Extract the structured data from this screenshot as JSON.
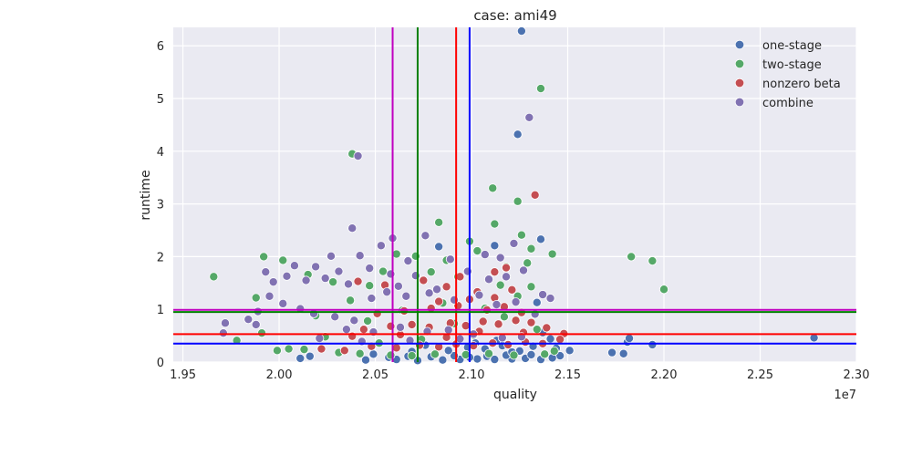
{
  "chart_data": {
    "type": "scatter",
    "title": "case: ami49",
    "xlabel": "quality",
    "ylabel": "runtime",
    "x_offset_label": "1e7",
    "xlim": [
      1.945,
      2.3
    ],
    "ylim": [
      0,
      6.35
    ],
    "x_ticks": [
      1.95,
      2.0,
      2.05,
      2.1,
      2.15,
      2.2,
      2.25,
      2.3
    ],
    "x_tick_labels": [
      "1.95",
      "2.00",
      "2.05",
      "2.10",
      "2.15",
      "2.20",
      "2.25",
      "2.30"
    ],
    "y_ticks": [
      0,
      1,
      2,
      3,
      4,
      5,
      6
    ],
    "y_tick_labels": [
      "0",
      "1",
      "2",
      "3",
      "4",
      "5",
      "6"
    ],
    "grid": true,
    "legend_position": "top-right",
    "series": [
      {
        "name": "one-stage",
        "color": "#4c72b0",
        "points": [
          [
            2.126,
            6.28
          ],
          [
            2.124,
            4.32
          ],
          [
            2.136,
            2.33
          ],
          [
            2.112,
            2.21
          ],
          [
            2.083,
            2.19
          ],
          [
            2.134,
            1.13
          ],
          [
            2.137,
            0.56
          ],
          [
            2.141,
            0.44
          ],
          [
            2.151,
            0.22
          ],
          [
            2.146,
            0.12
          ],
          [
            2.173,
            0.18
          ],
          [
            2.179,
            0.16
          ],
          [
            2.181,
            0.38
          ],
          [
            2.182,
            0.45
          ],
          [
            2.194,
            0.33
          ],
          [
            2.278,
            0.46
          ],
          [
            2.011,
            0.07
          ],
          [
            2.016,
            0.11
          ],
          [
            2.045,
            0.04
          ],
          [
            2.061,
            0.05
          ],
          [
            2.072,
            0.03
          ],
          [
            2.085,
            0.04
          ],
          [
            2.094,
            0.05
          ],
          [
            2.103,
            0.06
          ],
          [
            2.112,
            0.05
          ],
          [
            2.121,
            0.06
          ],
          [
            2.128,
            0.07
          ],
          [
            2.136,
            0.05
          ],
          [
            2.142,
            0.08
          ],
          [
            2.057,
            0.09
          ],
          [
            2.067,
            0.11
          ],
          [
            2.079,
            0.1
          ],
          [
            2.091,
            0.12
          ],
          [
            2.099,
            0.09
          ],
          [
            2.108,
            0.11
          ],
          [
            2.118,
            0.13
          ],
          [
            2.131,
            0.14
          ],
          [
            2.049,
            0.15
          ],
          [
            2.088,
            0.22
          ],
          [
            2.107,
            0.25
          ],
          [
            2.125,
            0.21
          ],
          [
            2.069,
            0.2
          ],
          [
            2.098,
            0.28
          ],
          [
            2.116,
            0.31
          ],
          [
            2.132,
            0.3
          ],
          [
            2.144,
            0.26
          ],
          [
            2.076,
            0.32
          ],
          [
            2.102,
            0.36
          ],
          [
            2.113,
            0.41
          ],
          [
            2.121,
            0.19
          ]
        ]
      },
      {
        "name": "two-stage",
        "color": "#55a868",
        "points": [
          [
            1.966,
            1.62
          ],
          [
            1.992,
            2.0
          ],
          [
            2.002,
            1.93
          ],
          [
            2.038,
            3.95
          ],
          [
            2.111,
            3.3
          ],
          [
            2.112,
            2.62
          ],
          [
            2.124,
            3.05
          ],
          [
            2.136,
            5.19
          ],
          [
            2.083,
            2.65
          ],
          [
            2.126,
            2.41
          ],
          [
            2.131,
            2.15
          ],
          [
            2.142,
            2.05
          ],
          [
            2.183,
            2.0
          ],
          [
            2.194,
            1.92
          ],
          [
            2.2,
            1.38
          ],
          [
            2.099,
            2.29
          ],
          [
            2.061,
            2.05
          ],
          [
            2.071,
            2.01
          ],
          [
            2.129,
            1.88
          ],
          [
            2.054,
            1.72
          ],
          [
            2.087,
            1.93
          ],
          [
            2.103,
            2.11
          ],
          [
            2.118,
            1.81
          ],
          [
            2.015,
            1.66
          ],
          [
            2.028,
            1.52
          ],
          [
            2.047,
            1.45
          ],
          [
            2.079,
            1.71
          ],
          [
            2.093,
            1.62
          ],
          [
            2.115,
            1.46
          ],
          [
            1.988,
            1.22
          ],
          [
            1.999,
            0.22
          ],
          [
            2.005,
            0.25
          ],
          [
            2.013,
            0.24
          ],
          [
            2.031,
            0.18
          ],
          [
            2.042,
            0.16
          ],
          [
            2.058,
            0.13
          ],
          [
            2.069,
            0.12
          ],
          [
            2.081,
            0.15
          ],
          [
            2.097,
            0.14
          ],
          [
            2.109,
            0.16
          ],
          [
            2.122,
            0.13
          ],
          [
            2.138,
            0.15
          ],
          [
            2.143,
            0.21
          ],
          [
            1.978,
            0.41
          ],
          [
            1.991,
            0.55
          ],
          [
            2.024,
            0.48
          ],
          [
            2.052,
            0.36
          ],
          [
            2.074,
            0.43
          ],
          [
            2.101,
            0.51
          ],
          [
            2.134,
            0.62
          ],
          [
            2.064,
            0.98
          ],
          [
            2.085,
            1.12
          ],
          [
            2.107,
            1.02
          ],
          [
            2.124,
            1.25
          ],
          [
            2.037,
            1.17
          ],
          [
            2.019,
            0.88
          ],
          [
            2.046,
            0.78
          ],
          [
            2.091,
            0.73
          ],
          [
            2.117,
            0.86
          ],
          [
            2.131,
            1.43
          ]
        ]
      },
      {
        "name": "nonzero beta",
        "color": "#c44e52",
        "points": [
          [
            2.133,
            3.17
          ],
          [
            2.112,
            1.71
          ],
          [
            2.118,
            1.79
          ],
          [
            2.094,
            1.62
          ],
          [
            2.075,
            1.55
          ],
          [
            2.041,
            1.53
          ],
          [
            2.055,
            1.46
          ],
          [
            2.087,
            1.43
          ],
          [
            2.103,
            1.33
          ],
          [
            2.121,
            1.37
          ],
          [
            2.022,
            0.25
          ],
          [
            2.034,
            0.22
          ],
          [
            2.048,
            0.3
          ],
          [
            2.061,
            0.27
          ],
          [
            2.073,
            0.32
          ],
          [
            2.083,
            0.29
          ],
          [
            2.092,
            0.34
          ],
          [
            2.101,
            0.31
          ],
          [
            2.111,
            0.36
          ],
          [
            2.119,
            0.33
          ],
          [
            2.128,
            0.38
          ],
          [
            2.137,
            0.35
          ],
          [
            2.148,
            0.54
          ],
          [
            2.146,
            0.43
          ],
          [
            2.044,
            0.62
          ],
          [
            2.058,
            0.68
          ],
          [
            2.069,
            0.71
          ],
          [
            2.078,
            0.66
          ],
          [
            2.089,
            0.74
          ],
          [
            2.097,
            0.69
          ],
          [
            2.106,
            0.77
          ],
          [
            2.114,
            0.72
          ],
          [
            2.123,
            0.79
          ],
          [
            2.131,
            0.75
          ],
          [
            2.139,
            0.65
          ],
          [
            2.051,
            0.92
          ],
          [
            2.065,
            0.97
          ],
          [
            2.079,
            1.02
          ],
          [
            2.093,
            1.07
          ],
          [
            2.108,
            0.99
          ],
          [
            2.117,
            1.05
          ],
          [
            2.126,
            0.94
          ],
          [
            2.083,
            1.15
          ],
          [
            2.099,
            1.19
          ],
          [
            2.112,
            1.22
          ],
          [
            2.038,
            0.49
          ],
          [
            2.063,
            0.52
          ],
          [
            2.087,
            0.47
          ],
          [
            2.104,
            0.58
          ],
          [
            2.127,
            0.56
          ]
        ]
      },
      {
        "name": "combine",
        "color": "#8172b2",
        "points": [
          [
            2.13,
            4.64
          ],
          [
            2.041,
            3.91
          ],
          [
            2.038,
            2.54
          ],
          [
            2.059,
            2.35
          ],
          [
            2.076,
            2.4
          ],
          [
            2.122,
            2.25
          ],
          [
            2.053,
            2.21
          ],
          [
            2.027,
            2.01
          ],
          [
            2.042,
            2.02
          ],
          [
            2.107,
            2.04
          ],
          [
            2.067,
            1.92
          ],
          [
            2.089,
            1.95
          ],
          [
            2.115,
            1.98
          ],
          [
            2.008,
            1.83
          ],
          [
            2.019,
            1.81
          ],
          [
            2.031,
            1.72
          ],
          [
            2.047,
            1.78
          ],
          [
            2.058,
            1.67
          ],
          [
            2.071,
            1.64
          ],
          [
            2.098,
            1.72
          ],
          [
            2.127,
            1.74
          ],
          [
            1.993,
            1.71
          ],
          [
            1.997,
            1.52
          ],
          [
            2.004,
            1.63
          ],
          [
            2.014,
            1.55
          ],
          [
            2.024,
            1.59
          ],
          [
            2.036,
            1.48
          ],
          [
            2.062,
            1.44
          ],
          [
            2.082,
            1.38
          ],
          [
            2.109,
            1.57
          ],
          [
            2.118,
            1.62
          ],
          [
            2.141,
            1.21
          ],
          [
            2.137,
            1.28
          ],
          [
            1.984,
            0.81
          ],
          [
            1.972,
            0.74
          ],
          [
            1.971,
            0.55
          ],
          [
            1.988,
            0.71
          ],
          [
            1.989,
            0.96
          ],
          [
            1.995,
            1.25
          ],
          [
            2.002,
            1.11
          ],
          [
            2.011,
            1.01
          ],
          [
            2.018,
            0.92
          ],
          [
            2.029,
            0.86
          ],
          [
            2.039,
            0.79
          ],
          [
            2.048,
            1.21
          ],
          [
            2.056,
            1.33
          ],
          [
            2.066,
            1.25
          ],
          [
            2.078,
            1.31
          ],
          [
            2.091,
            1.18
          ],
          [
            2.104,
            1.27
          ],
          [
            2.113,
            1.09
          ],
          [
            2.123,
            1.14
          ],
          [
            2.133,
            0.91
          ],
          [
            2.035,
            0.62
          ],
          [
            2.049,
            0.57
          ],
          [
            2.063,
            0.66
          ],
          [
            2.077,
            0.58
          ],
          [
            2.088,
            0.61
          ],
          [
            2.101,
            0.53
          ],
          [
            2.116,
            0.46
          ],
          [
            2.021,
            0.45
          ],
          [
            2.043,
            0.39
          ],
          [
            2.068,
            0.41
          ],
          [
            2.094,
            0.44
          ],
          [
            2.126,
            0.48
          ]
        ]
      }
    ],
    "reference_lines": {
      "vertical": [
        {
          "x": 2.059,
          "color": "#c000c0"
        },
        {
          "x": 2.072,
          "color": "#008000"
        },
        {
          "x": 2.092,
          "color": "#ff0000"
        },
        {
          "x": 2.099,
          "color": "#0000ff"
        }
      ],
      "horizontal": [
        {
          "y": 0.99,
          "color": "#c000c0"
        },
        {
          "y": 0.95,
          "color": "#008000"
        },
        {
          "y": 0.53,
          "color": "#ff0000"
        },
        {
          "y": 0.35,
          "color": "#0000ff"
        }
      ]
    }
  }
}
